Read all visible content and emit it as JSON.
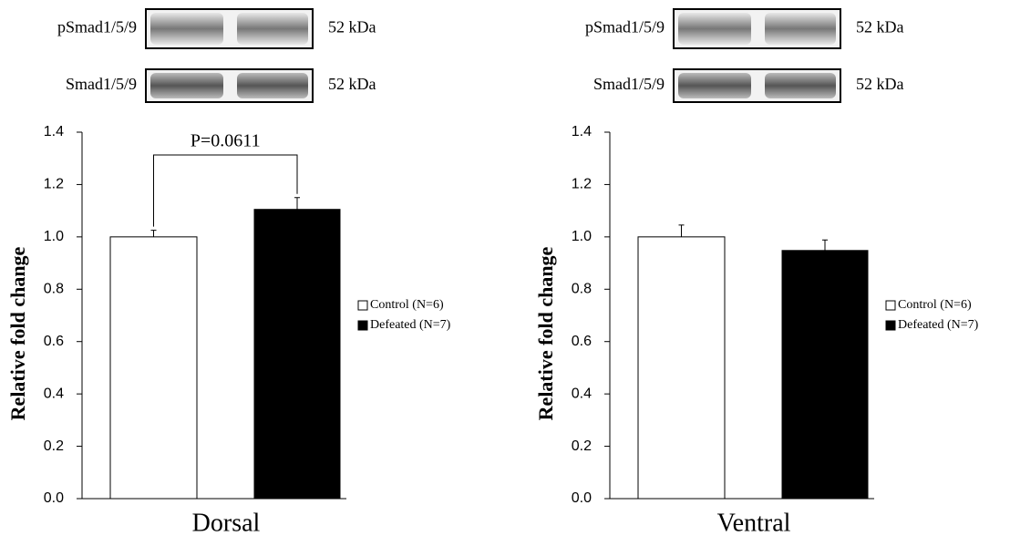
{
  "chart_data": [
    {
      "type": "bar",
      "blots": [
        {
          "label": "pSmad1/5/9",
          "size": "52 kDa"
        },
        {
          "label": "Smad1/5/9",
          "size": "52 kDa"
        }
      ],
      "ylabel": "Relative fold change",
      "xlabel": "Dorsal",
      "annotation": "P=0.0611",
      "series": [
        {
          "name": "Control (N=6)",
          "color": "#ffffff",
          "values": [
            1.0
          ],
          "errors": [
            0.025
          ]
        },
        {
          "name": "Defeated (N=7)",
          "color": "#000000",
          "values": [
            1.105
          ],
          "errors": [
            0.045
          ]
        }
      ],
      "ylim": [
        0,
        1.4
      ],
      "yticks": [
        {
          "value": 0,
          "label": "0.0"
        },
        0.2,
        0.4,
        0.6,
        0.8,
        {
          "value": 1,
          "label": "1.0"
        },
        1.2,
        1.4
      ],
      "grid": false
    },
    {
      "type": "bar",
      "blots": [
        {
          "label": "pSmad1/5/9",
          "size": "52 kDa"
        },
        {
          "label": "Smad1/5/9",
          "size": "52 kDa"
        }
      ],
      "ylabel": "Relative fold change",
      "xlabel": "Ventral",
      "series": [
        {
          "name": "Control (N=6)",
          "color": "#ffffff",
          "values": [
            1.0
          ],
          "errors": [
            0.045
          ]
        },
        {
          "name": "Defeated (N=7)",
          "color": "#000000",
          "values": [
            0.948
          ],
          "errors": [
            0.04
          ]
        }
      ],
      "ylim": [
        0,
        1.4
      ],
      "yticks": [
        {
          "value": 0,
          "label": "0.0"
        },
        0.2,
        0.4,
        0.6,
        0.8,
        {
          "value": 1,
          "label": "1.0"
        },
        1.2,
        1.4
      ],
      "grid": false
    }
  ]
}
